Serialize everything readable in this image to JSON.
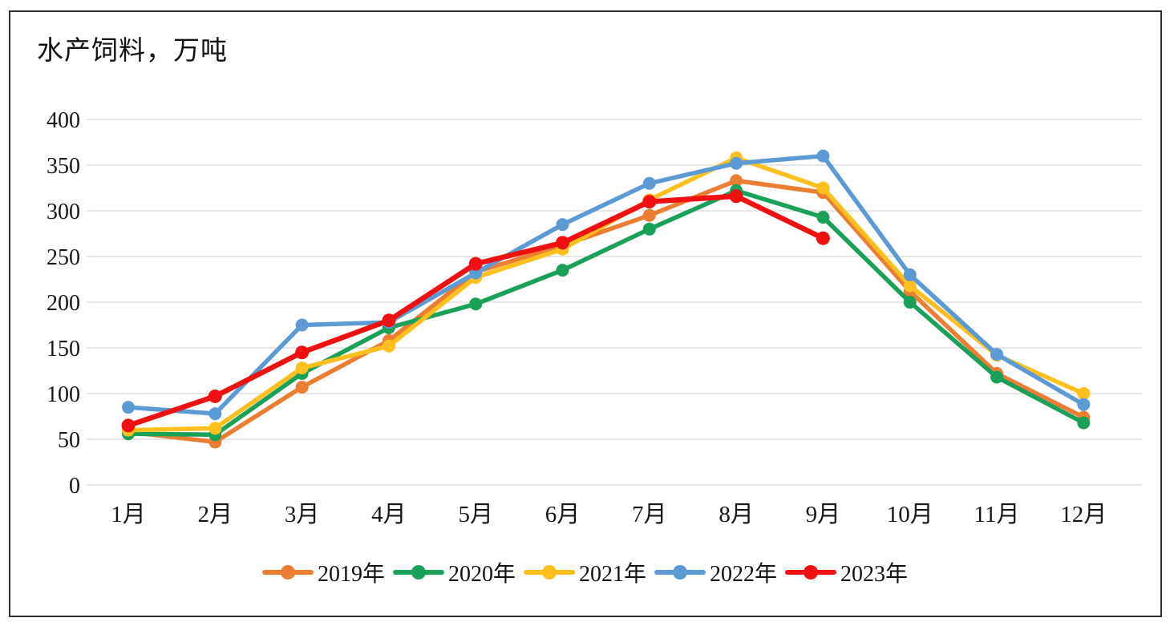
{
  "chart": {
    "title": "水产饲料，万吨"
  },
  "chart_data": {
    "type": "line",
    "title": "水产饲料，万吨",
    "categories": [
      "1月",
      "2月",
      "3月",
      "4月",
      "5月",
      "6月",
      "7月",
      "8月",
      "9月",
      "10月",
      "11月",
      "12月"
    ],
    "series": [
      {
        "name": "2019年",
        "color": "#ED7D31",
        "values": [
          58,
          47,
          107,
          158,
          233,
          262,
          295,
          333,
          320,
          212,
          122,
          74
        ]
      },
      {
        "name": "2020年",
        "color": "#1AA158",
        "values": [
          56,
          55,
          122,
          172,
          198,
          235,
          280,
          322,
          293,
          200,
          118,
          68
        ]
      },
      {
        "name": "2021年",
        "color": "#FFC01E",
        "values": [
          60,
          62,
          128,
          152,
          227,
          258,
          312,
          358,
          325,
          218,
          142,
          100
        ]
      },
      {
        "name": "2022年",
        "color": "#5B9BD5",
        "values": [
          85,
          78,
          175,
          178,
          232,
          285,
          330,
          352,
          360,
          230,
          143,
          88
        ]
      },
      {
        "name": "2023年",
        "color": "#F01010",
        "values": [
          65,
          97,
          145,
          180,
          242,
          265,
          310,
          316,
          270,
          null,
          null,
          null
        ]
      }
    ],
    "xlabel": "",
    "ylabel": "万吨",
    "ylim": [
      0,
      400
    ],
    "ytick_step": 50,
    "grid": true,
    "legend_position": "bottom"
  }
}
